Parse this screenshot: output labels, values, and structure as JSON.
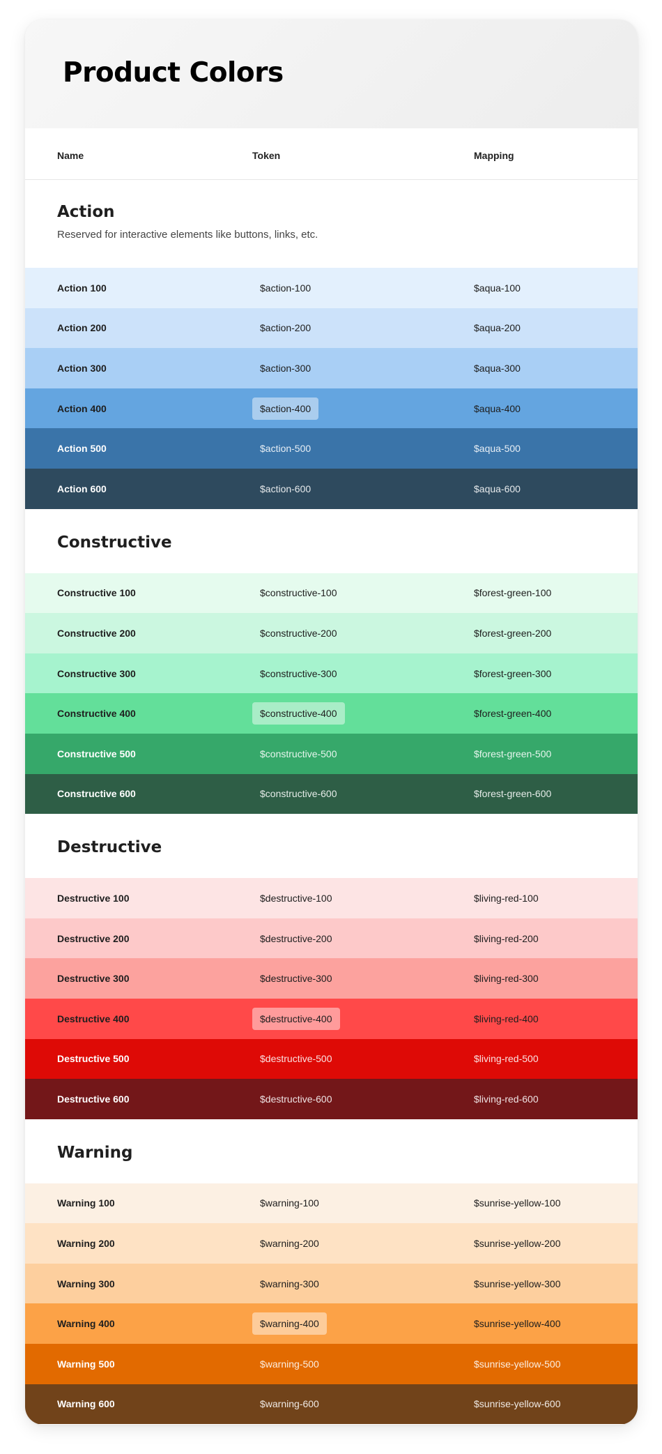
{
  "title": "Product Colors",
  "columns": {
    "name": "Name",
    "token": "Token",
    "mapping": "Mapping"
  },
  "sections": [
    {
      "name": "Action",
      "description": "Reserved for interactive elements like buttons, links, etc.",
      "rows": [
        {
          "name": "Action 100",
          "token": "$action-100",
          "mapping": "$aqua-100",
          "color": "#E3F0FD"
        },
        {
          "name": "Action 200",
          "token": "$action-200",
          "mapping": "$aqua-200",
          "color": "#CCE2FA"
        },
        {
          "name": "Action 300",
          "token": "$action-300",
          "mapping": "$aqua-300",
          "color": "#A9CFF5"
        },
        {
          "name": "Action 400",
          "token": "$action-400",
          "mapping": "$aqua-400",
          "color": "#64A5E0"
        },
        {
          "name": "Action 500",
          "token": "$action-500",
          "mapping": "$aqua-500",
          "color": "#3A74A9"
        },
        {
          "name": "Action 600",
          "token": "$action-600",
          "mapping": "$aqua-600",
          "color": "#2E4A5E"
        }
      ]
    },
    {
      "name": "Constructive",
      "description": "",
      "rows": [
        {
          "name": "Constructive 100",
          "token": "$constructive-100",
          "mapping": "$forest-green-100",
          "color": "#E5FBEE"
        },
        {
          "name": "Constructive 200",
          "token": "$constructive-200",
          "mapping": "$forest-green-200",
          "color": "#CBF7E0"
        },
        {
          "name": "Constructive 300",
          "token": "$constructive-300",
          "mapping": "$forest-green-300",
          "color": "#A6F3CE"
        },
        {
          "name": "Constructive 400",
          "token": "$constructive-400",
          "mapping": "$forest-green-400",
          "color": "#63DF9A"
        },
        {
          "name": "Constructive 500",
          "token": "$constructive-500",
          "mapping": "$forest-green-500",
          "color": "#36A86A"
        },
        {
          "name": "Constructive 600",
          "token": "$constructive-600",
          "mapping": "$forest-green-600",
          "color": "#2E5E46"
        }
      ]
    },
    {
      "name": "Destructive",
      "description": "",
      "rows": [
        {
          "name": "Destructive 100",
          "token": "$destructive-100",
          "mapping": "$living-red-100",
          "color": "#FDE4E4"
        },
        {
          "name": "Destructive 200",
          "token": "$destructive-200",
          "mapping": "$living-red-200",
          "color": "#FDC9C9"
        },
        {
          "name": "Destructive 300",
          "token": "$destructive-300",
          "mapping": "$living-red-300",
          "color": "#FCA29E"
        },
        {
          "name": "Destructive 400",
          "token": "$destructive-400",
          "mapping": "$living-red-400",
          "color": "#FF4949"
        },
        {
          "name": "Destructive 500",
          "token": "$destructive-500",
          "mapping": "$living-red-500",
          "color": "#DE0A06"
        },
        {
          "name": "Destructive 600",
          "token": "$destructive-600",
          "mapping": "$living-red-600",
          "color": "#731719"
        }
      ]
    },
    {
      "name": "Warning",
      "description": "",
      "rows": [
        {
          "name": "Warning 100",
          "token": "$warning-100",
          "mapping": "$sunrise-yellow-100",
          "color": "#FCF0E3"
        },
        {
          "name": "Warning 200",
          "token": "$warning-200",
          "mapping": "$sunrise-yellow-200",
          "color": "#FEE2C4"
        },
        {
          "name": "Warning 300",
          "token": "$warning-300",
          "mapping": "$sunrise-yellow-300",
          "color": "#FDCF9E"
        },
        {
          "name": "Warning 400",
          "token": "$warning-400",
          "mapping": "$sunrise-yellow-400",
          "color": "#FCA247"
        },
        {
          "name": "Warning 500",
          "token": "$warning-500",
          "mapping": "$sunrise-yellow-500",
          "color": "#E26A00"
        },
        {
          "name": "Warning 600",
          "token": "$warning-600",
          "mapping": "$sunrise-yellow-600",
          "color": "#71431A"
        }
      ]
    }
  ]
}
